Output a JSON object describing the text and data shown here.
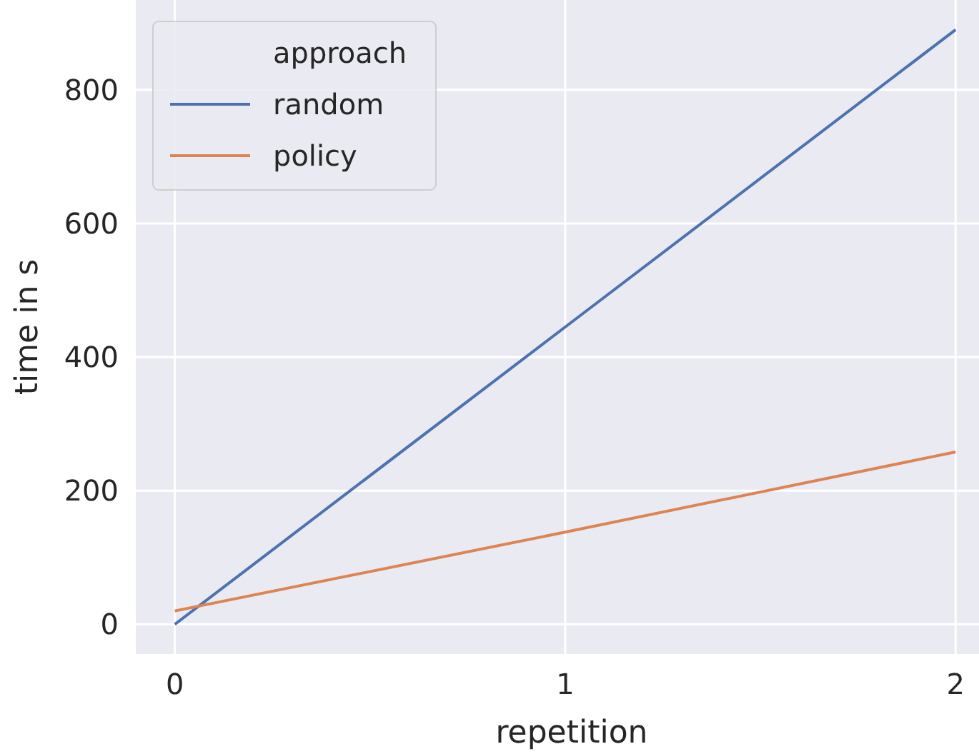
{
  "chart_data": {
    "type": "line",
    "xlabel": "repetition",
    "ylabel": "time in s",
    "legend_title": "approach",
    "x": [
      0,
      1,
      2
    ],
    "series": [
      {
        "name": "random",
        "color": "#4c72b0",
        "values": [
          0,
          445,
          890
        ]
      },
      {
        "name": "policy",
        "color": "#dd8452",
        "values": [
          20,
          138,
          258
        ]
      }
    ],
    "xlim": [
      -0.1,
      2.06
    ],
    "ylim": [
      -44.5,
      934.5
    ],
    "xticks": [
      0,
      1,
      2
    ],
    "yticks": [
      0,
      200,
      400,
      600,
      800
    ],
    "grid": true,
    "legend": "top left",
    "line_style": "solid",
    "marker": "none"
  }
}
